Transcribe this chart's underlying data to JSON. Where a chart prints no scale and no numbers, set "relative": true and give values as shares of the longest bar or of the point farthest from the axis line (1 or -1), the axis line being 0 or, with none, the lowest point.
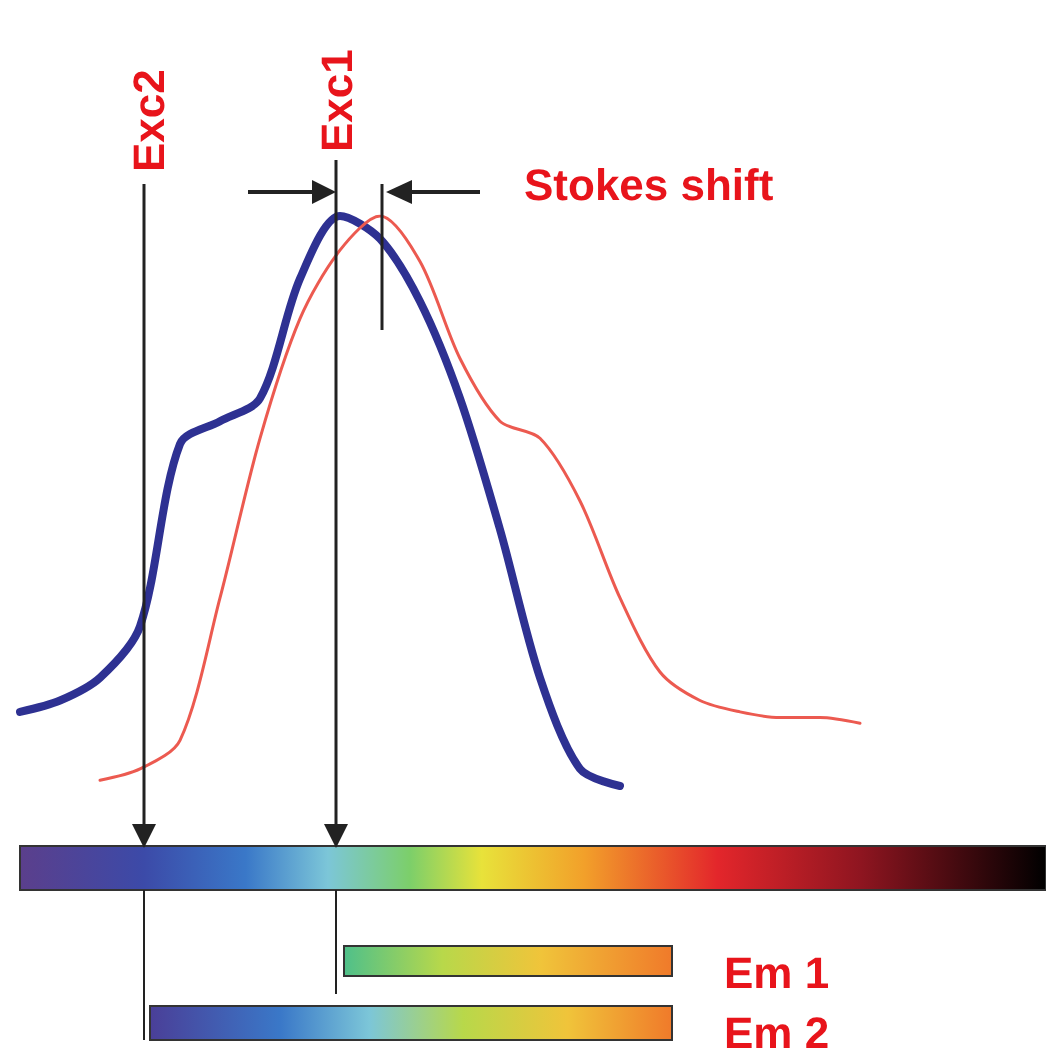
{
  "chart_data": {
    "type": "line",
    "relative": true,
    "categories": [
      null,
      null,
      null,
      null,
      null,
      null,
      null,
      null,
      null,
      null,
      null,
      null,
      null,
      null,
      null,
      null,
      null,
      null,
      null,
      null,
      null,
      null
    ],
    "series": [
      {
        "color": "#2e3192",
        "values": [
          0.13,
          0.15,
          0.19,
          0.28,
          0.6,
          0.64,
          0.68,
          0.89,
          1,
          0.96,
          0.85,
          0.68,
          0.45,
          0.19,
          0.03,
          0,
          null,
          null,
          null,
          null,
          null,
          null
        ]
      },
      {
        "color": "#ec5a50",
        "values": [
          null,
          null,
          0.01,
          0.03,
          0.08,
          0.33,
          0.61,
          0.82,
          0.94,
          1,
          0.92,
          0.75,
          0.64,
          0.61,
          0.5,
          0.33,
          0.2,
          0.15,
          0.13,
          0.12,
          0.12,
          0.11
        ]
      }
    ],
    "annotations": [
      "Exc2",
      "Exc1",
      "Stokes shift",
      "Em 1",
      "Em 2"
    ]
  }
}
